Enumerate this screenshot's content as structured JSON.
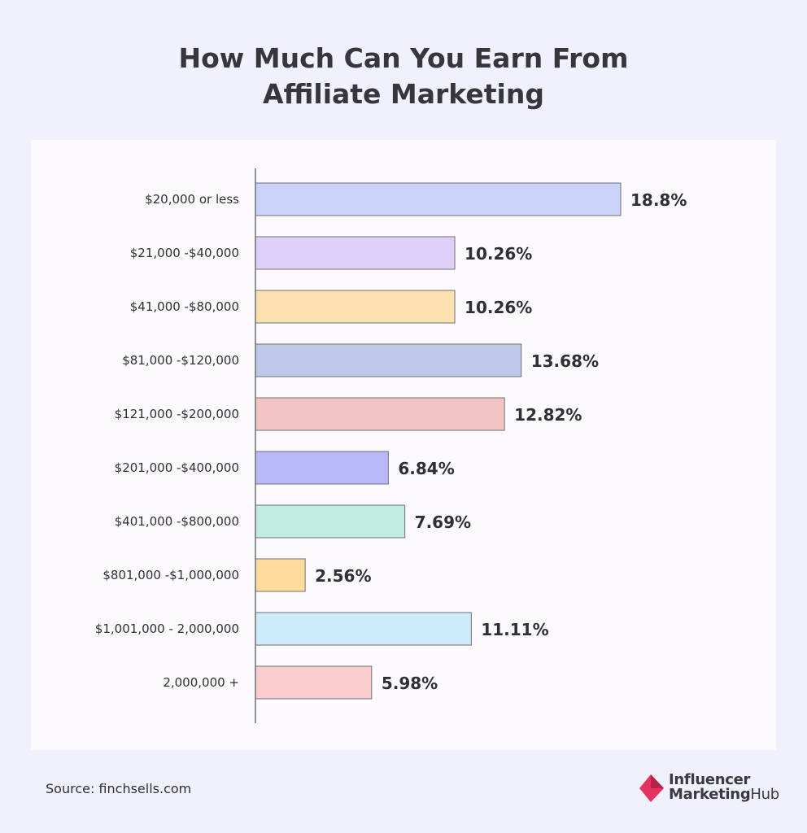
{
  "chart_data": {
    "type": "bar",
    "orientation": "horizontal",
    "title": "How Much Can You Earn From Affiliate Marketing",
    "title_lines": [
      "How Much Can You Earn From",
      "Affiliate Marketing"
    ],
    "categories": [
      "$20,000 or less",
      "$21,000 -$40,000",
      "$41,000 -$80,000",
      "$81,000 -$120,000",
      "$121,000 -$200,000",
      "$201,000 -$400,000",
      "$401,000 -$800,000",
      "$801,000 -$1,000,000",
      "$1,001,000 - 2,000,000",
      "2,000,000 +"
    ],
    "values": [
      18.8,
      10.26,
      10.26,
      13.68,
      12.82,
      6.84,
      7.69,
      2.56,
      11.11,
      5.98
    ],
    "data_labels": [
      "18.8%",
      "10.26%",
      "10.26%",
      "13.68%",
      "12.82%",
      "6.84%",
      "7.69%",
      "2.56%",
      "11.11%",
      "5.98%"
    ],
    "unit": "%",
    "colors": [
      "#ccd3fa",
      "#dfd0f9",
      "#fbe0b0",
      "#c0c8e9",
      "#f3c4c6",
      "#b9b9f8",
      "#c1ece0",
      "#fddc9c",
      "#cdebf8",
      "#f9cdcd"
    ],
    "xlim": [
      0,
      18.8
    ],
    "grid": false,
    "legend": "none"
  },
  "footer": {
    "source": "Source: finchsells.com",
    "brand_line1": "Influencer",
    "brand_line2_bold": "Marketing",
    "brand_line2_rest": "Hub",
    "brand_color": "#e5335f"
  }
}
